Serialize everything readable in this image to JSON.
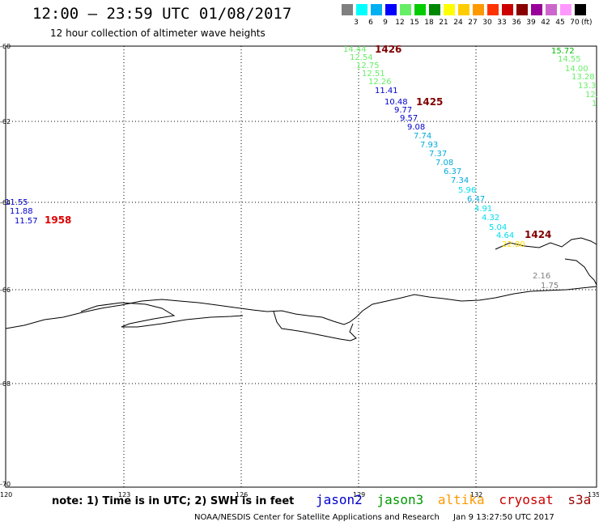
{
  "header": {
    "title": "12:00 – 23:59 UTC 01/08/2017",
    "subtitle": "12 hour collection of altimeter wave heights"
  },
  "colorbar": {
    "unit": "(ft)",
    "bins": [
      {
        "label": "3",
        "color": "#808080"
      },
      {
        "label": "6",
        "color": "#00ffff"
      },
      {
        "label": "9",
        "color": "#00b0f0"
      },
      {
        "label": "12",
        "color": "#0000ff"
      },
      {
        "label": "15",
        "color": "#66ee66"
      },
      {
        "label": "18",
        "color": "#00cc00"
      },
      {
        "label": "21",
        "color": "#008800"
      },
      {
        "label": "24",
        "color": "#ffff00"
      },
      {
        "label": "27",
        "color": "#ffcc00"
      },
      {
        "label": "30",
        "color": "#ff9900"
      },
      {
        "label": "33",
        "color": "#ff3300"
      },
      {
        "label": "36",
        "color": "#cc0000"
      },
      {
        "label": "39",
        "color": "#880000"
      },
      {
        "label": "42",
        "color": "#990099"
      },
      {
        "label": "45",
        "color": "#cc66cc"
      },
      {
        "label": "70",
        "color": "#ff99ff"
      },
      {
        "label": "",
        "color": "#000000"
      }
    ]
  },
  "axes": {
    "lat_labels": [
      "-60",
      "-62",
      "-64",
      "-66",
      "-68",
      "-70"
    ],
    "lon_labels": [
      "120",
      "123",
      "126",
      "129",
      "132",
      "135"
    ]
  },
  "passes": [
    {
      "label": "1426",
      "color": "#800000"
    },
    {
      "label": "1425",
      "color": "#800000"
    },
    {
      "label": "1424",
      "color": "#800000"
    },
    {
      "label": "1958",
      "color": "#dd0000"
    }
  ],
  "observations": [
    {
      "text": "14.44",
      "color": "#66ee66"
    },
    {
      "text": "12.54",
      "color": "#66ee66"
    },
    {
      "text": "12.75",
      "color": "#66ee66"
    },
    {
      "text": "12.51",
      "color": "#66ee66"
    },
    {
      "text": "12.26",
      "color": "#66ee66"
    },
    {
      "text": "11.41",
      "color": "#0000cc"
    },
    {
      "text": "10.48",
      "color": "#0000cc"
    },
    {
      "text": "9.77",
      "color": "#0000cc"
    },
    {
      "text": "9.57",
      "color": "#0000cc"
    },
    {
      "text": "9.08",
      "color": "#0000cc"
    },
    {
      "text": "7.74",
      "color": "#00aadd"
    },
    {
      "text": "7.93",
      "color": "#00aadd"
    },
    {
      "text": "7.37",
      "color": "#00aadd"
    },
    {
      "text": "7.08",
      "color": "#00aadd"
    },
    {
      "text": "6.37",
      "color": "#00aadd"
    },
    {
      "text": "7.34",
      "color": "#00aadd"
    },
    {
      "text": "5.96",
      "color": "#00ddee"
    },
    {
      "text": "6.47",
      "color": "#00aadd"
    },
    {
      "text": "4.91",
      "color": "#00ddee"
    },
    {
      "text": "4.32",
      "color": "#00ddee"
    },
    {
      "text": "5.04",
      "color": "#00ddee"
    },
    {
      "text": "4.64",
      "color": "#00ddee"
    },
    {
      "text": "22.80",
      "color": "#ffdd00"
    },
    {
      "text": "15.72",
      "color": "#00bb00"
    },
    {
      "text": "14.55",
      "color": "#66ee66"
    },
    {
      "text": "14.00",
      "color": "#66ee66"
    },
    {
      "text": "13.28",
      "color": "#66ee66"
    },
    {
      "text": "13.3",
      "color": "#66ee66"
    },
    {
      "text": "12.",
      "color": "#66ee66"
    },
    {
      "text": "1",
      "color": "#66ee66"
    },
    {
      "text": "2.16",
      "color": "#808080"
    },
    {
      "text": "1.75",
      "color": "#808080"
    },
    {
      "text": "11.55",
      "color": "#0000cc"
    },
    {
      "text": "11.88",
      "color": "#0000cc"
    },
    {
      "text": "11.57",
      "color": "#0000cc"
    }
  ],
  "note": "note: 1) Time is in UTC; 2) SWH is in feet",
  "satellites": [
    {
      "name": "jason2",
      "color": "#0000cc"
    },
    {
      "name": "jason3",
      "color": "#009900"
    },
    {
      "name": "altika",
      "color": "#ff9900"
    },
    {
      "name": "cryosat",
      "color": "#cc0000"
    },
    {
      "name": "s3a",
      "color": "#990000"
    }
  ],
  "footer": {
    "credit": "NOAA/NESDIS Center for Satellite Applications and Research",
    "timestamp": "Jan  9 13:27:50 UTC 2017"
  }
}
